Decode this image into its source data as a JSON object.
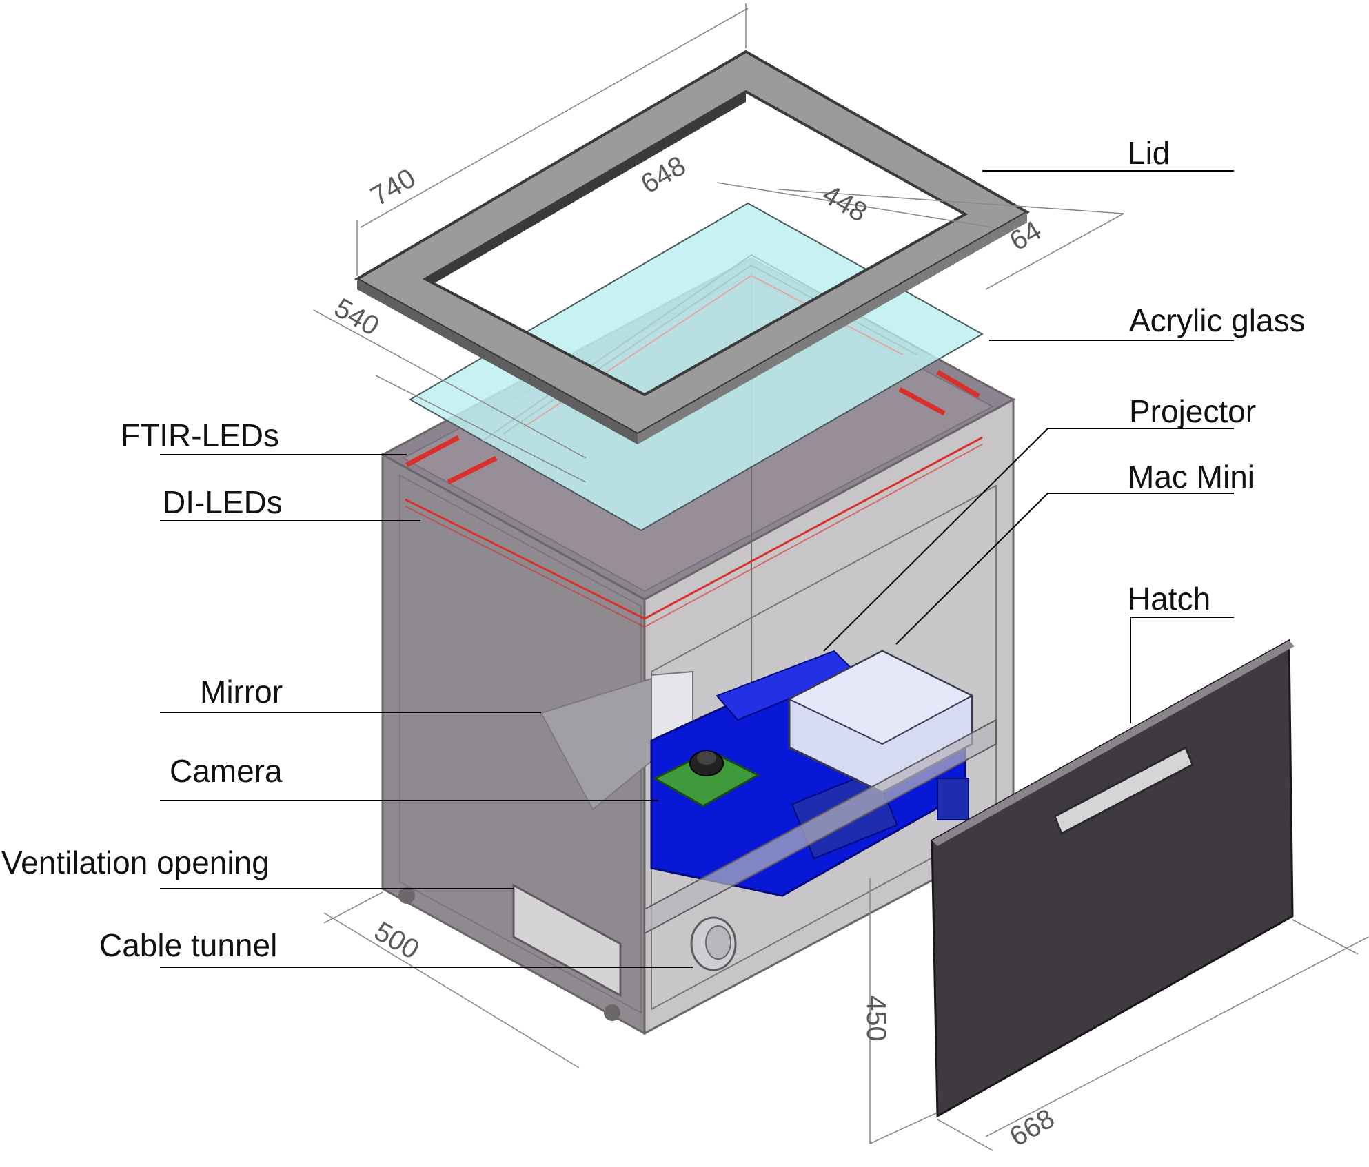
{
  "labels": {
    "lid": "Lid",
    "acrylic_glass": "Acrylic glass",
    "projector": "Projector",
    "mac_mini": "Mac Mini",
    "hatch": "Hatch",
    "ftir_leds": "FTIR-LEDs",
    "di_leds": "DI-LEDs",
    "mirror": "Mirror",
    "camera": "Camera",
    "ventilation_opening": "Ventilation opening",
    "cable_tunnel": "Cable tunnel"
  },
  "dimensions": {
    "lid_length": "740",
    "glass_length": "648",
    "glass_width": "448",
    "frame_width": "64",
    "lid_width": "540",
    "box_depth": "500",
    "box_height": "450",
    "hatch_width": "668"
  },
  "colors": {
    "lid_frame": "#9b9b9b",
    "acrylic_glass": "#bdeef0",
    "box_body": "#8f8a8f",
    "led_strip": "#d9302c",
    "projector": "#0818d6",
    "mac_mini": "#d6daf2",
    "camera_board": "#3e9a3a",
    "hatch": "#3f3a40"
  }
}
